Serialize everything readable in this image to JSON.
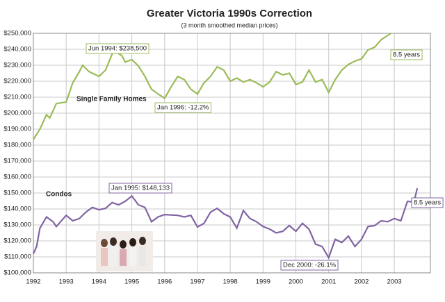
{
  "chart_data": {
    "type": "line",
    "title": "Greater Victoria 1990s Correction",
    "subtitle": "(3 month smoothed median prices)",
    "xlim": [
      1992,
      2004.1
    ],
    "xticks": [
      1992,
      1993,
      1994,
      1995,
      1996,
      1997,
      1998,
      1999,
      2000,
      2001,
      2002,
      2003
    ],
    "ylim": [
      100000,
      250000
    ],
    "yticks": [
      {
        "value": 100000,
        "label": "$100,000"
      },
      {
        "value": 110000,
        "label": "$110,000"
      },
      {
        "value": 120000,
        "label": "$120,000"
      },
      {
        "value": 130000,
        "label": "$130,000"
      },
      {
        "value": 140000,
        "label": "$140,000"
      },
      {
        "value": 150000,
        "label": "$150,000"
      },
      {
        "value": 160000,
        "label": "$160,000"
      },
      {
        "value": 170000,
        "label": "$170,000"
      },
      {
        "value": 180000,
        "label": "$180,000"
      },
      {
        "value": 190000,
        "label": "$190,000"
      },
      {
        "value": 200000,
        "label": "$200,000"
      },
      {
        "value": 210000,
        "label": "$210,000"
      },
      {
        "value": 220000,
        "label": "$220,000"
      },
      {
        "value": 230000,
        "label": "$230,000"
      },
      {
        "value": 240000,
        "label": "$240,000"
      },
      {
        "value": 250000,
        "label": "$250,000"
      }
    ],
    "grid": true,
    "series": [
      {
        "name": "Single Family Homes",
        "color": "#9bbb59",
        "x": [
          1992.0,
          1992.2,
          1992.4,
          1992.5,
          1992.7,
          1993.0,
          1993.2,
          1993.4,
          1993.5,
          1993.7,
          1993.9,
          1994.0,
          1994.2,
          1994.4,
          1994.5,
          1994.7,
          1994.8,
          1995.0,
          1995.2,
          1995.4,
          1995.6,
          1995.8,
          1996.0,
          1996.2,
          1996.4,
          1996.6,
          1996.8,
          1997.0,
          1997.2,
          1997.4,
          1997.6,
          1997.8,
          1998.0,
          1998.2,
          1998.4,
          1998.6,
          1998.8,
          1999.0,
          1999.2,
          1999.4,
          1999.6,
          1999.8,
          2000.0,
          2000.2,
          2000.4,
          2000.6,
          2000.8,
          2001.0,
          2001.2,
          2001.4,
          2001.6,
          2001.8,
          2002.0,
          2002.2,
          2002.4,
          2002.6,
          2002.8,
          2002.9
        ],
        "values": [
          183500,
          190000,
          199000,
          197000,
          206000,
          207000,
          219000,
          226000,
          230000,
          226000,
          224000,
          223000,
          227000,
          237000,
          238500,
          236000,
          232000,
          233500,
          229600,
          223000,
          215000,
          212000,
          209400,
          216500,
          223000,
          221000,
          215000,
          212000,
          219000,
          223000,
          229000,
          227000,
          220000,
          222000,
          219500,
          221000,
          219000,
          216500,
          219500,
          226000,
          224000,
          225000,
          218000,
          219500,
          227000,
          219500,
          221000,
          213000,
          221000,
          227000,
          230500,
          232600,
          234000,
          239600,
          241300,
          246000,
          248700,
          250000
        ]
      },
      {
        "name": "Condos",
        "color": "#8064a2",
        "x": [
          1992.0,
          1992.1,
          1992.2,
          1992.4,
          1992.6,
          1992.7,
          1993.0,
          1993.2,
          1993.4,
          1993.6,
          1993.8,
          1994.0,
          1994.2,
          1994.4,
          1994.6,
          1994.8,
          1995.0,
          1995.2,
          1995.4,
          1995.6,
          1995.8,
          1996.0,
          1996.4,
          1996.6,
          1996.8,
          1997.0,
          1997.2,
          1997.4,
          1997.6,
          1997.8,
          1998.0,
          1998.2,
          1998.4,
          1998.6,
          1998.8,
          1999.0,
          1999.2,
          1999.4,
          1999.6,
          1999.8,
          2000.0,
          2000.2,
          2000.4,
          2000.6,
          2000.8,
          2001.0,
          2001.2,
          2001.4,
          2001.6,
          2001.8,
          2002.0,
          2002.2,
          2002.4,
          2002.6,
          2002.8,
          2003.0,
          2003.2,
          2003.4,
          2003.6,
          2003.7
        ],
        "values": [
          112000,
          116500,
          128000,
          135000,
          132000,
          129000,
          136000,
          132600,
          134000,
          138000,
          141000,
          139500,
          140400,
          144000,
          142600,
          144800,
          148133,
          142600,
          141000,
          132000,
          135000,
          136500,
          136000,
          135000,
          136000,
          128700,
          131000,
          138000,
          140400,
          137000,
          135000,
          128000,
          139000,
          134000,
          132000,
          129000,
          127400,
          125000,
          126000,
          129600,
          126000,
          131000,
          127400,
          118000,
          116500,
          109500,
          121000,
          119000,
          123000,
          116500,
          121000,
          129000,
          129600,
          132600,
          132000,
          134000,
          132600,
          144800,
          144400,
          153000
        ]
      }
    ],
    "annotations": [
      {
        "text": "Jun 1994: $238,500"
      },
      {
        "text": "8.5 years"
      },
      {
        "text": "Jan 1996: -12.2%"
      },
      {
        "text": "Jan 1995: $148,133"
      },
      {
        "text": "8.5 years"
      },
      {
        "text": "Dec 2000: -26.1%"
      }
    ]
  }
}
